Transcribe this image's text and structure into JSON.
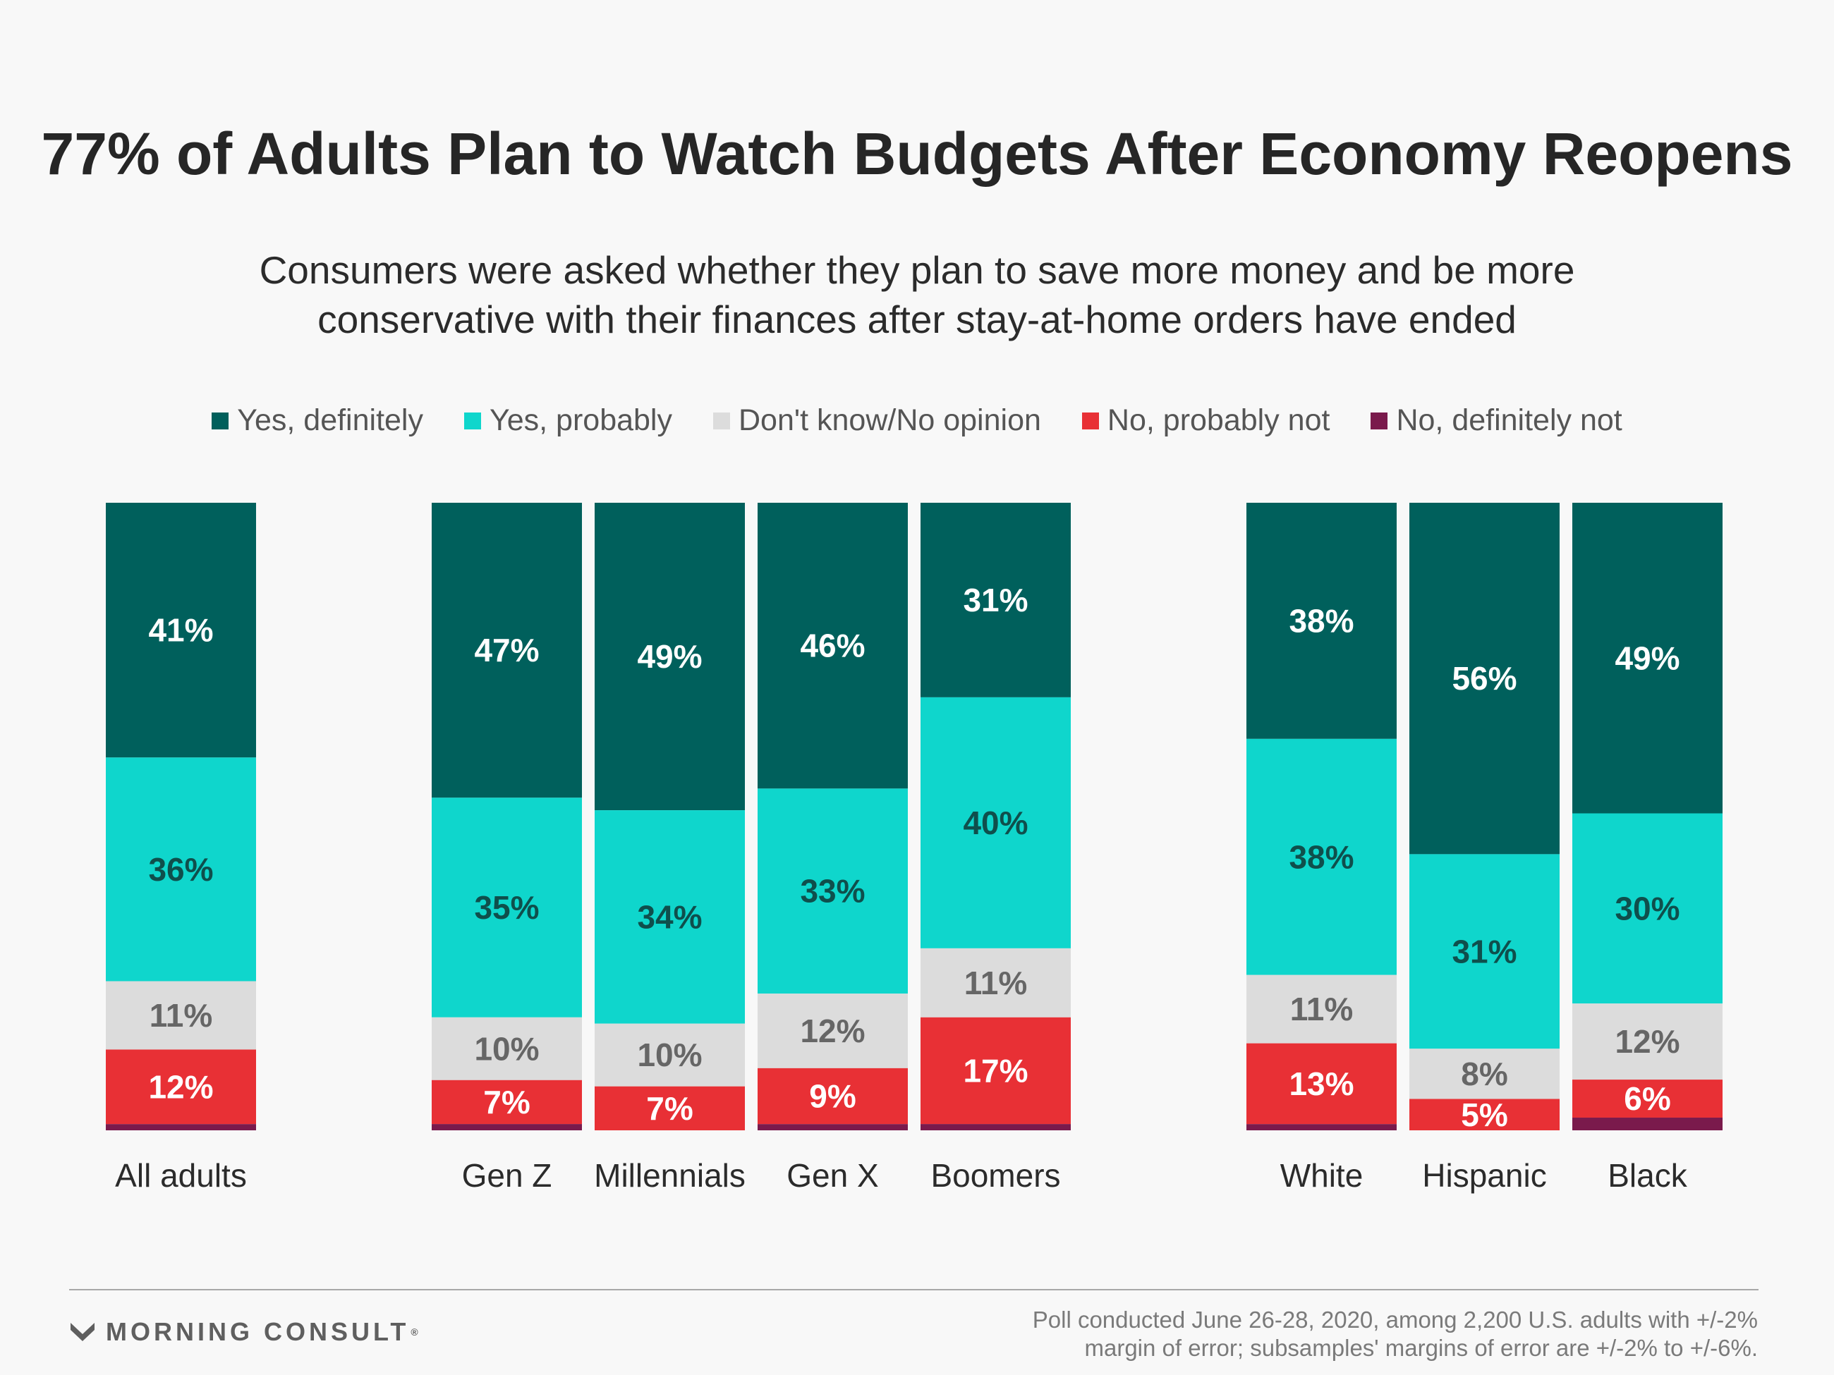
{
  "title": "77% of Adults Plan to Watch Budgets After Economy Reopens",
  "subtitle_lines": [
    "Consumers were asked whether they plan to save more money and be more",
    "conservative with their finances after stay-at-home orders have ended"
  ],
  "legend": [
    {
      "label": "Yes, definitely",
      "color": "#00605c"
    },
    {
      "label": "Yes, probably",
      "color": "#0fd6cc"
    },
    {
      "label": "Don't know/No opinion",
      "color": "#dcdcdc"
    },
    {
      "label": "No, probably not",
      "color": "#e83035"
    },
    {
      "label": "No, definitely not",
      "color": "#7a1a4c"
    }
  ],
  "chart_data": {
    "type": "bar",
    "stacked": true,
    "orientation": "vertical",
    "value_unit": "%",
    "categories": [
      "All adults",
      "Gen Z",
      "Millennials",
      "Gen X",
      "Boomers",
      "White",
      "Hispanic",
      "Black"
    ],
    "groups": [
      [
        "All adults"
      ],
      [
        "Gen Z",
        "Millennials",
        "Gen X",
        "Boomers"
      ],
      [
        "White",
        "Hispanic",
        "Black"
      ]
    ],
    "series": [
      {
        "name": "Yes, definitely",
        "color": "#00605c",
        "label_color": "#ffffff",
        "values": [
          41,
          47,
          49,
          46,
          31,
          38,
          56,
          49
        ]
      },
      {
        "name": "Yes, probably",
        "color": "#0fd6cc",
        "label_color": "#0f4f4c",
        "values": [
          36,
          35,
          34,
          33,
          40,
          38,
          31,
          30
        ]
      },
      {
        "name": "Don't know/No opinion",
        "color": "#dcdcdc",
        "label_color": "#666666",
        "values": [
          11,
          10,
          10,
          12,
          11,
          11,
          8,
          12
        ]
      },
      {
        "name": "No, probably not",
        "color": "#e83035",
        "label_color": "#ffffff",
        "values": [
          12,
          7,
          7,
          9,
          17,
          13,
          5,
          6
        ]
      },
      {
        "name": "No, definitely not",
        "color": "#7a1a4c",
        "label_color": "#ffffff",
        "values": [
          1,
          1,
          0,
          1,
          1,
          1,
          0,
          2
        ]
      }
    ],
    "data_labels": [
      [
        "41%",
        "47%",
        "49%",
        "46%",
        "31%",
        "38%",
        "56%",
        "49%"
      ],
      [
        "36%",
        "35%",
        "34%",
        "33%",
        "40%",
        "38%",
        "31%",
        "30%"
      ],
      [
        "11%",
        "10%",
        "10%",
        "12%",
        "11%",
        "11%",
        "8%",
        "12%"
      ],
      [
        "12%",
        "7%",
        "7%",
        "9%",
        "17%",
        "13%",
        "5%",
        "6%"
      ],
      [
        "",
        "",
        "",
        "",
        "",
        "",
        "",
        ""
      ]
    ],
    "ylim": [
      0,
      100
    ],
    "grid": false,
    "legend_position": "top"
  },
  "footer": {
    "brand": "MORNING CONSULT",
    "brand_mark": "®",
    "note_lines": [
      "Poll conducted June 26-28, 2020, among 2,200 U.S. adults with +/-2%",
      "margin of error; subsamples' margins of error are +/-2% to +/-6%."
    ]
  }
}
